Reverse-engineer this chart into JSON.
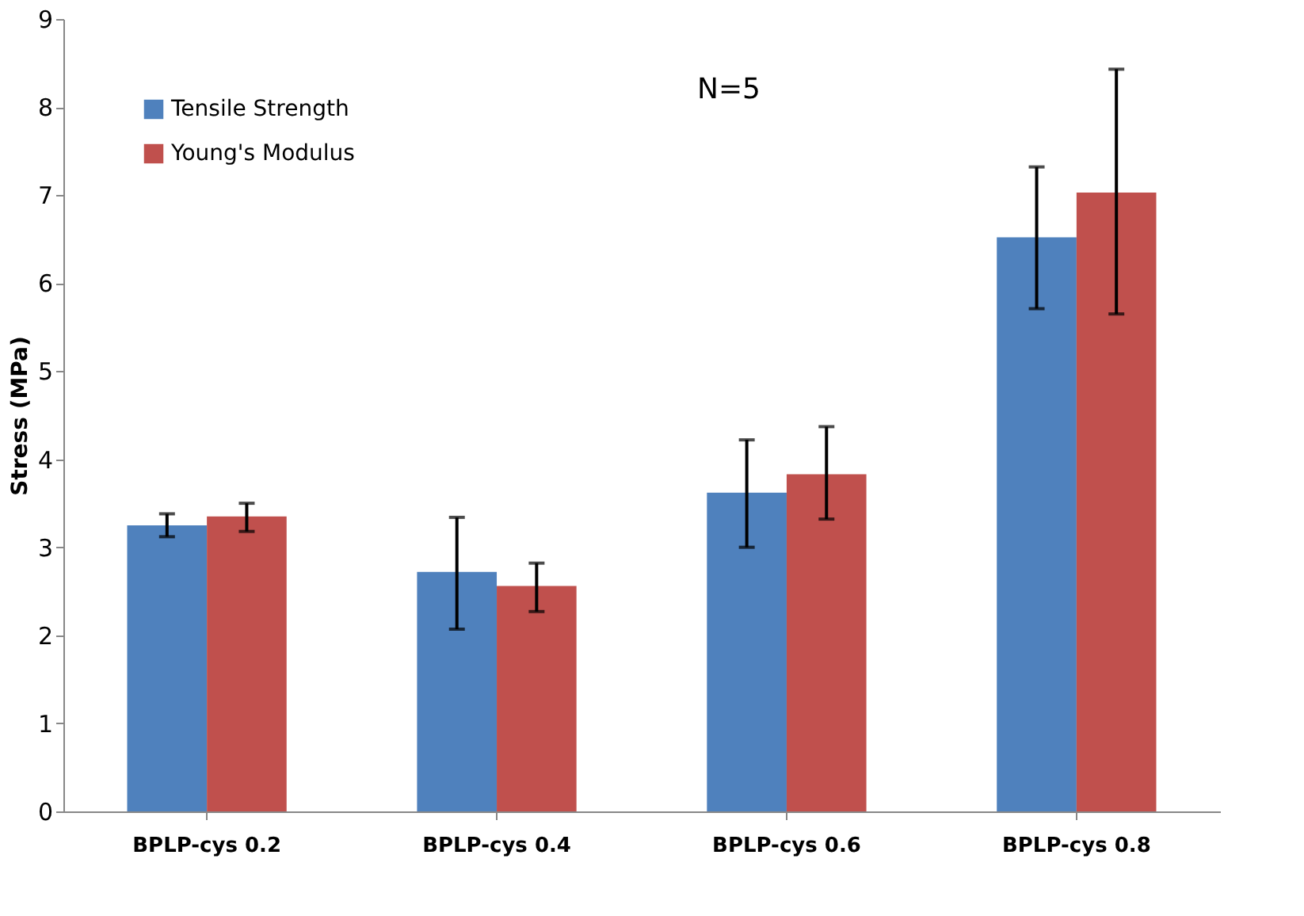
{
  "chart_data": {
    "type": "bar",
    "ylabel": "Stress (MPa)",
    "categories": [
      "BPLP-cys 0.2",
      "BPLP-cys 0.4",
      "BPLP-cys 0.6",
      "BPLP-cys 0.8"
    ],
    "series": [
      {
        "name": "Tensile Strength",
        "color": "#4f81bd",
        "values": [
          3.25,
          2.72,
          3.62,
          6.52
        ],
        "errors": [
          [
            3.12,
            3.38
          ],
          [
            2.07,
            3.34
          ],
          [
            3.0,
            4.22
          ],
          [
            5.71,
            7.32
          ]
        ]
      },
      {
        "name": "Young's Modulus",
        "color": "#c0504d",
        "values": [
          3.35,
          2.56,
          3.83,
          7.03
        ],
        "errors": [
          [
            3.18,
            3.5
          ],
          [
            2.27,
            2.82
          ],
          [
            3.32,
            4.37
          ],
          [
            5.65,
            8.43
          ]
        ]
      }
    ],
    "ylim": [
      0,
      9
    ],
    "yticks": [
      0,
      1,
      2,
      3,
      4,
      5,
      6,
      7,
      8,
      9
    ],
    "grid": false,
    "legend": "top left",
    "annotations": [
      "N=5"
    ]
  }
}
